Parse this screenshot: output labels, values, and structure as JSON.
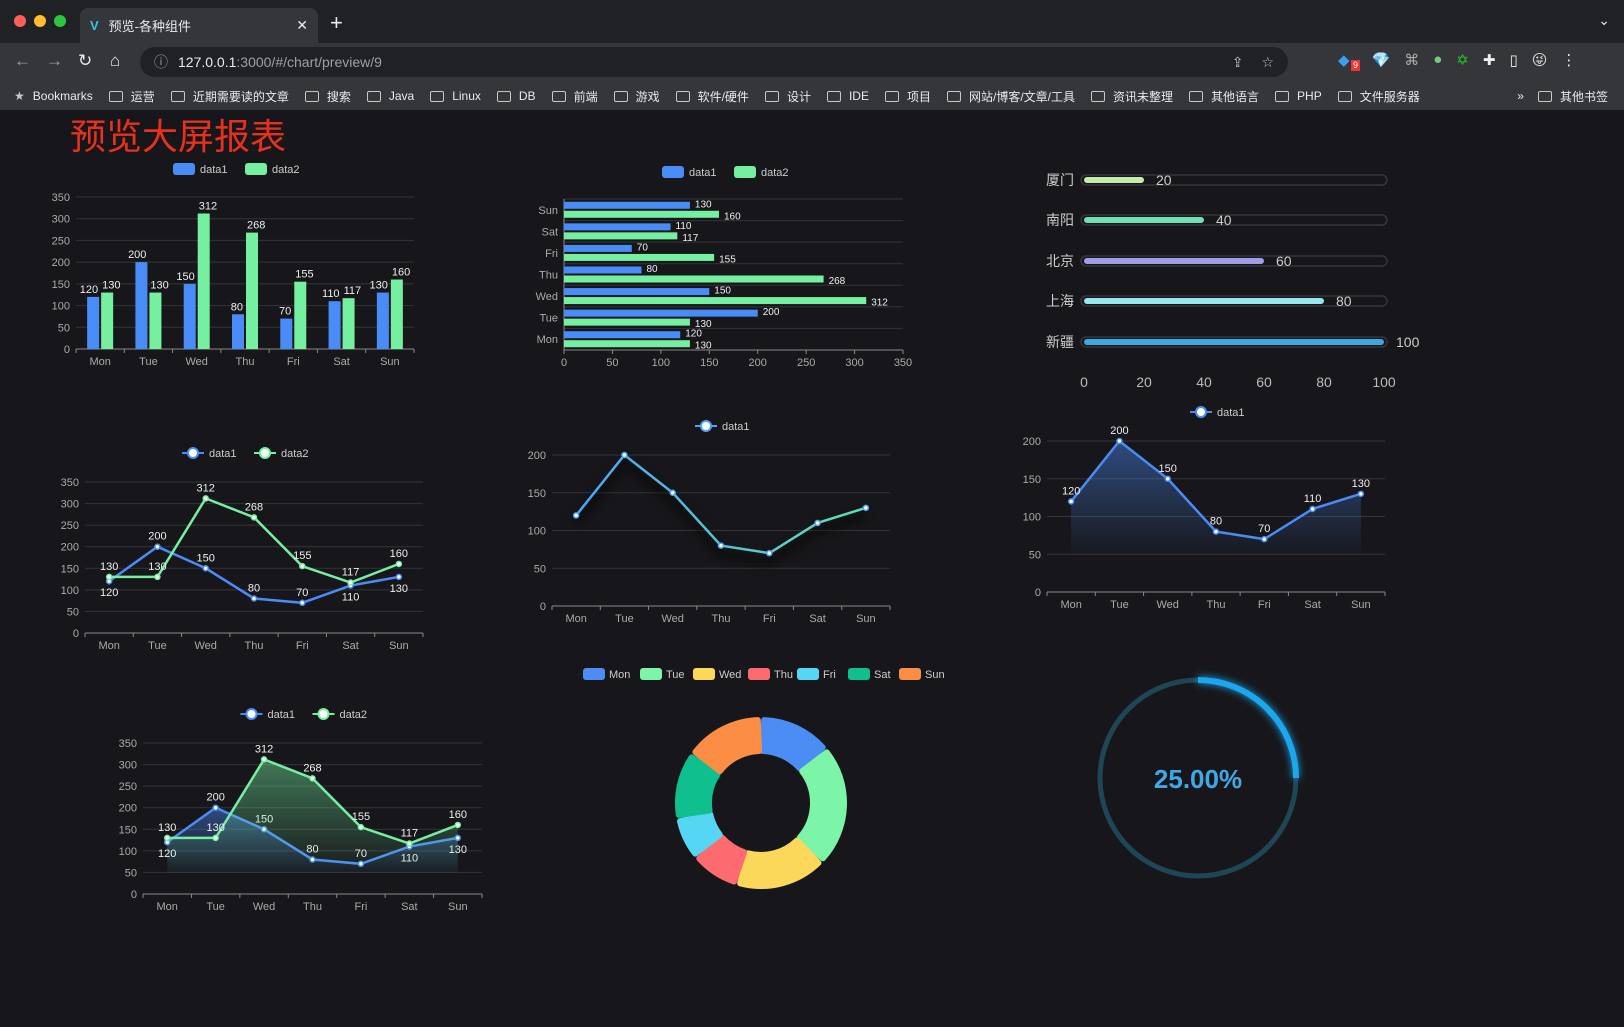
{
  "browser": {
    "tab_title": "预览-各种组件",
    "url_host": "127.0.0.1",
    "url_path": ":3000/#/chart/preview/9",
    "bookmarks": [
      "Bookmarks",
      "运营",
      "近期需要读的文章",
      "搜索",
      "Java",
      "Linux",
      "DB",
      "前端",
      "游戏",
      "软件/硬件",
      "设计",
      "IDE",
      "项目",
      "网站/博客/文章/工具",
      "资讯未整理",
      "其他语言",
      "PHP",
      "文件服务器"
    ],
    "more": "»",
    "other_bookmarks": "其他书签",
    "ext_badge": "9"
  },
  "page": {
    "title": "预览大屏报表"
  },
  "chart_data": [
    {
      "type": "bar",
      "categories": [
        "Mon",
        "Tue",
        "Wed",
        "Thu",
        "Fri",
        "Sat",
        "Sun"
      ],
      "series": [
        {
          "name": "data1",
          "values": [
            120,
            200,
            150,
            80,
            70,
            110,
            130
          ],
          "color": "#4a8cf7"
        },
        {
          "name": "data2",
          "values": [
            130,
            130,
            312,
            268,
            155,
            117,
            160
          ],
          "color": "#75f0a0"
        }
      ],
      "ylim": [
        0,
        350
      ],
      "yticks": [
        0,
        50,
        100,
        150,
        200,
        250,
        300,
        350
      ],
      "legend": "top"
    },
    {
      "type": "bar",
      "orientation": "horizontal",
      "categories": [
        "Mon",
        "Tue",
        "Wed",
        "Thu",
        "Fri",
        "Sat",
        "Sun"
      ],
      "series": [
        {
          "name": "data1",
          "values": [
            120,
            200,
            150,
            80,
            70,
            110,
            130
          ],
          "color": "#4a8cf7"
        },
        {
          "name": "data2",
          "values": [
            130,
            130,
            312,
            268,
            155,
            117,
            160
          ],
          "color": "#75f0a0"
        }
      ],
      "xlim": [
        0,
        350
      ],
      "xticks": [
        0,
        50,
        100,
        150,
        200,
        250,
        300,
        350
      ],
      "legend": "top"
    },
    {
      "type": "bar",
      "orientation": "horizontal",
      "style": "progress",
      "categories": [
        "厦门",
        "南阳",
        "北京",
        "上海",
        "新疆"
      ],
      "values": [
        20,
        40,
        60,
        80,
        100
      ],
      "colors": [
        "#c6eca8",
        "#6ee0b5",
        "#a09ee8",
        "#96e6ef",
        "#3ba9e0"
      ],
      "xlim": [
        0,
        100
      ],
      "xticks": [
        0,
        20,
        40,
        60,
        80,
        100
      ]
    },
    {
      "type": "line",
      "categories": [
        "Mon",
        "Tue",
        "Wed",
        "Thu",
        "Fri",
        "Sat",
        "Sun"
      ],
      "series": [
        {
          "name": "data1",
          "values": [
            120,
            200,
            150,
            80,
            70,
            110,
            130
          ],
          "color": "#4a8cf7"
        },
        {
          "name": "data2",
          "values": [
            130,
            130,
            312,
            268,
            155,
            117,
            160
          ],
          "color": "#75f0a0"
        }
      ],
      "ylim": [
        0,
        350
      ],
      "yticks": [
        0,
        50,
        100,
        150,
        200,
        250,
        300,
        350
      ],
      "legend": "top",
      "data_labels": true
    },
    {
      "type": "line",
      "categories": [
        "Mon",
        "Tue",
        "Wed",
        "Thu",
        "Fri",
        "Sat",
        "Sun"
      ],
      "series": [
        {
          "name": "data1",
          "values": [
            120,
            200,
            150,
            80,
            70,
            110,
            130
          ],
          "color": "#4fa3f7",
          "color_end": "#5fe0b0"
        }
      ],
      "ylim": [
        0,
        200
      ],
      "yticks": [
        0,
        50,
        100,
        150,
        200
      ],
      "legend": "top",
      "data_labels": false,
      "shadow": true
    },
    {
      "type": "area",
      "categories": [
        "Mon",
        "Tue",
        "Wed",
        "Thu",
        "Fri",
        "Sat",
        "Sun"
      ],
      "series": [
        {
          "name": "data1",
          "values": [
            120,
            200,
            150,
            80,
            70,
            110,
            130
          ],
          "color": "#4a8cf7"
        }
      ],
      "ylim": [
        0,
        200
      ],
      "yticks": [
        0,
        50,
        100,
        150,
        200
      ],
      "legend": "top",
      "data_labels": true
    },
    {
      "type": "area",
      "categories": [
        "Mon",
        "Tue",
        "Wed",
        "Thu",
        "Fri",
        "Sat",
        "Sun"
      ],
      "series": [
        {
          "name": "data1",
          "values": [
            120,
            200,
            150,
            80,
            70,
            110,
            130
          ],
          "color": "#4a8cf7"
        },
        {
          "name": "data2",
          "values": [
            130,
            130,
            312,
            268,
            155,
            117,
            160
          ],
          "color": "#75f0a0"
        }
      ],
      "ylim": [
        0,
        350
      ],
      "yticks": [
        0,
        50,
        100,
        150,
        200,
        250,
        300,
        350
      ],
      "legend": "top",
      "data_labels": true
    },
    {
      "type": "pie",
      "donut": true,
      "categories": [
        "Mon",
        "Tue",
        "Wed",
        "Thu",
        "Fri",
        "Sat",
        "Sun"
      ],
      "values": [
        120,
        200,
        150,
        80,
        70,
        110,
        130
      ],
      "colors": [
        "#4b8cf5",
        "#7cf5a8",
        "#fcd85a",
        "#fd6b71",
        "#56d6f5",
        "#0fbf8e",
        "#fb8d45"
      ],
      "legend": "top"
    },
    {
      "type": "gauge",
      "value": 0.25,
      "label": "25.00%",
      "color": "#1aa7ee",
      "track_color": "#1f4656"
    }
  ]
}
